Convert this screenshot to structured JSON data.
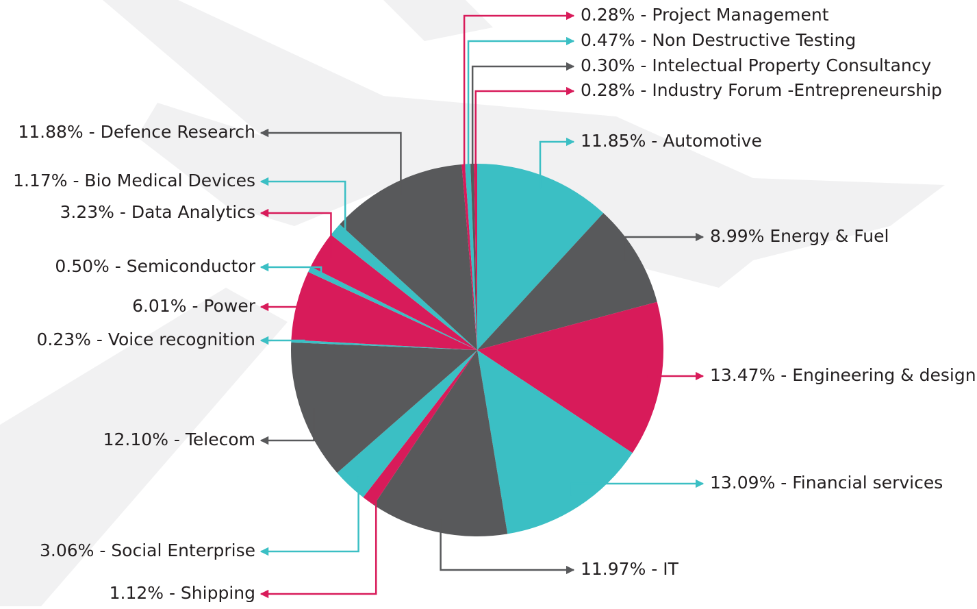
{
  "chart_data": {
    "type": "pie",
    "categories": [
      "11.85% - Automotive",
      "8.99% Energy & Fuel",
      "13.47% - Engineering & design",
      "13.09% - Financial services",
      "11.97% - IT",
      "1.12% - Shipping",
      "3.06% - Social Enterprise",
      "12.10% - Telecom",
      "0.23% - Voice recognition",
      "6.01% - Power",
      "0.50% - Semiconductor",
      "3.23% - Data Analytics",
      "1.17% - Bio Medical Devices",
      "11.88% - Defence Research",
      "0.28% - Project Management",
      "0.47% - Non Destructive Testing",
      "0.30% - Intelectual Property Consultancy",
      "0.28% - Industry Forum -Entrepreneurship"
    ],
    "values": [
      11.85,
      8.99,
      13.47,
      13.09,
      11.97,
      1.12,
      3.06,
      12.1,
      0.23,
      6.01,
      0.5,
      3.23,
      1.17,
      11.88,
      0.28,
      0.47,
      0.3,
      0.28
    ],
    "colors": [
      "#3bbfc4",
      "#58595b",
      "#d81b5a",
      "#3bbfc4",
      "#58595b",
      "#d81b5a",
      "#3bbfc4",
      "#58595b",
      "#3bbfc4",
      "#d81b5a",
      "#3bbfc4",
      "#d81b5a",
      "#3bbfc4",
      "#58595b",
      "#d81b5a",
      "#3bbfc4",
      "#58595b",
      "#d81b5a"
    ]
  }
}
